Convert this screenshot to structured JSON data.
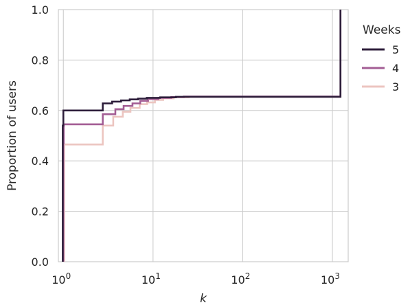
{
  "chart_data": {
    "type": "line",
    "xlabel": "k",
    "ylabel": "Proportion of users",
    "xscale": "log",
    "xlim": [
      0.88,
      1500
    ],
    "ylim": [
      0.0,
      1.0
    ],
    "grid": true,
    "x_ticks": [
      {
        "value": 1,
        "base": "10",
        "exp": "0"
      },
      {
        "value": 10,
        "base": "10",
        "exp": "1"
      },
      {
        "value": 100,
        "base": "10",
        "exp": "2"
      },
      {
        "value": 1000,
        "base": "10",
        "exp": "3"
      }
    ],
    "y_ticks": [
      {
        "value": 0.0,
        "label": "0.0"
      },
      {
        "value": 0.2,
        "label": "0.2"
      },
      {
        "value": 0.4,
        "label": "0.4"
      },
      {
        "value": 0.6,
        "label": "0.6"
      },
      {
        "value": 0.8,
        "label": "0.8"
      },
      {
        "value": 1.0,
        "label": "1.0"
      }
    ],
    "legend": {
      "title": "Weeks",
      "position": "right"
    },
    "series": [
      {
        "name": "3",
        "color": "#ecc5c0",
        "points": [
          [
            1.02,
            0
          ],
          [
            1.02,
            0.465
          ],
          [
            2.75,
            0.465
          ],
          [
            2.75,
            0.54
          ],
          [
            3.6,
            0.54
          ],
          [
            3.6,
            0.575
          ],
          [
            4.6,
            0.575
          ],
          [
            4.6,
            0.595
          ],
          [
            5.6,
            0.595
          ],
          [
            5.6,
            0.61
          ],
          [
            7.1,
            0.61
          ],
          [
            7.1,
            0.625
          ],
          [
            8.6,
            0.625
          ],
          [
            8.6,
            0.632
          ],
          [
            10.5,
            0.632
          ],
          [
            10.5,
            0.642
          ],
          [
            13,
            0.642
          ],
          [
            13,
            0.648
          ],
          [
            17,
            0.648
          ],
          [
            17,
            0.652
          ],
          [
            25,
            0.652
          ],
          [
            25,
            0.654
          ],
          [
            1230,
            0.654
          ],
          [
            1230,
            1.0
          ]
        ]
      },
      {
        "name": "4",
        "color": "#a35d94",
        "points": [
          [
            1.0,
            0
          ],
          [
            1.0,
            0.47
          ],
          [
            1.01,
            0.47
          ],
          [
            1.01,
            0.545
          ],
          [
            2.75,
            0.545
          ],
          [
            2.75,
            0.585
          ],
          [
            3.8,
            0.585
          ],
          [
            3.8,
            0.605
          ],
          [
            4.7,
            0.605
          ],
          [
            4.7,
            0.618
          ],
          [
            5.9,
            0.618
          ],
          [
            5.9,
            0.628
          ],
          [
            7.2,
            0.628
          ],
          [
            7.2,
            0.638
          ],
          [
            8.8,
            0.638
          ],
          [
            8.8,
            0.645
          ],
          [
            11.5,
            0.645
          ],
          [
            11.5,
            0.65
          ],
          [
            16,
            0.65
          ],
          [
            16,
            0.653
          ],
          [
            22,
            0.653
          ],
          [
            22,
            0.655
          ],
          [
            1230,
            0.655
          ],
          [
            1230,
            1.0
          ]
        ]
      },
      {
        "name": "5",
        "color": "#2e1e3b",
        "points": [
          [
            0.985,
            0
          ],
          [
            0.985,
            0.54
          ],
          [
            1.0,
            0.54
          ],
          [
            1.0,
            0.6
          ],
          [
            2.75,
            0.6
          ],
          [
            2.75,
            0.628
          ],
          [
            3.5,
            0.628
          ],
          [
            3.5,
            0.635
          ],
          [
            4.4,
            0.635
          ],
          [
            4.4,
            0.64
          ],
          [
            5.5,
            0.64
          ],
          [
            5.5,
            0.644
          ],
          [
            6.8,
            0.644
          ],
          [
            6.8,
            0.647
          ],
          [
            8.5,
            0.647
          ],
          [
            8.5,
            0.65
          ],
          [
            12,
            0.65
          ],
          [
            12,
            0.652
          ],
          [
            18,
            0.652
          ],
          [
            18,
            0.654
          ],
          [
            1230,
            0.654
          ],
          [
            1230,
            1.0
          ]
        ]
      }
    ],
    "legend_order": [
      "5",
      "4",
      "3"
    ]
  }
}
